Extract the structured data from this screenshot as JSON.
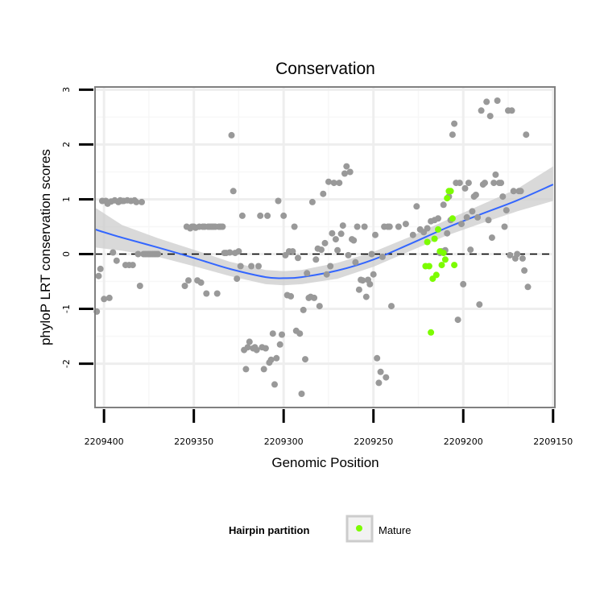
{
  "chart_data": {
    "type": "scatter",
    "title": "Conservation",
    "xlabel": "Genomic Position",
    "ylabel": "phyloP LRT conservation scores",
    "x_reversed": true,
    "xlim": [
      2209149,
      2209405
    ],
    "ylim": [
      -2.8,
      3.05
    ],
    "x_ticks": [
      2209400,
      2209350,
      2209300,
      2209250,
      2209200,
      2209150
    ],
    "x_tick_labels": [
      "2209400",
      "2209350",
      "2209300",
      "2209250",
      "2209200",
      "2209150"
    ],
    "y_ticks": [
      -2,
      -1,
      0,
      1,
      2,
      3
    ],
    "y_tick_labels": [
      "-2",
      "-1",
      "0",
      "1",
      "2",
      "3"
    ],
    "grid": true,
    "reference_line": {
      "y": 0,
      "style": "dashed"
    },
    "legend": {
      "title": "Hairpin partition",
      "placement": "bottom",
      "entries": [
        {
          "label": "Mature",
          "color": "#7cfc00"
        }
      ]
    },
    "series": [
      {
        "color": "#999999",
        "points": [
          [
            2209404,
            -1.05
          ],
          [
            2209403,
            -0.4
          ],
          [
            2209402,
            -0.27
          ],
          [
            2209401,
            0.97
          ],
          [
            2209400,
            -0.82
          ],
          [
            2209399,
            0.97
          ],
          [
            2209398,
            0.92
          ],
          [
            2209397,
            -0.8
          ],
          [
            2209396,
            0.96
          ],
          [
            2209395,
            0.03
          ],
          [
            2209394,
            0.98
          ],
          [
            2209393,
            -0.12
          ],
          [
            2209392,
            0.95
          ],
          [
            2209391,
            0.98
          ],
          [
            2209390,
            0.97
          ],
          [
            2209389,
            0.97
          ],
          [
            2209388,
            -0.2
          ],
          [
            2209387,
            0.98
          ],
          [
            2209386,
            -0.2
          ],
          [
            2209385,
            0.97
          ],
          [
            2209384,
            -0.2
          ],
          [
            2209383,
            0.98
          ],
          [
            2209382,
            0.95
          ],
          [
            2209381,
            0.0
          ],
          [
            2209380,
            -0.58
          ],
          [
            2209379,
            0.95
          ],
          [
            2209378,
            0.0
          ],
          [
            2209377,
            0.0
          ],
          [
            2209376,
            0.0
          ],
          [
            2209375,
            0.0
          ],
          [
            2209374,
            0.0
          ],
          [
            2209373,
            0.0
          ],
          [
            2209372,
            0.0
          ],
          [
            2209371,
            0.0
          ],
          [
            2209370,
            0.0
          ],
          [
            2209355,
            -0.58
          ],
          [
            2209354,
            0.5
          ],
          [
            2209353,
            -0.48
          ],
          [
            2209352,
            0.47
          ],
          [
            2209351,
            0.5
          ],
          [
            2209350,
            0.5
          ],
          [
            2209349,
            0.48
          ],
          [
            2209348,
            -0.48
          ],
          [
            2209347,
            0.5
          ],
          [
            2209346,
            -0.52
          ],
          [
            2209345,
            0.5
          ],
          [
            2209344,
            0.5
          ],
          [
            2209343,
            -0.72
          ],
          [
            2209342,
            0.5
          ],
          [
            2209341,
            0.5
          ],
          [
            2209340,
            0.5
          ],
          [
            2209339,
            0.5
          ],
          [
            2209338,
            0.5
          ],
          [
            2209337,
            -0.72
          ],
          [
            2209336,
            0.5
          ],
          [
            2209335,
            0.5
          ],
          [
            2209334,
            0.5
          ],
          [
            2209333,
            0.02
          ],
          [
            2209332,
            0.02
          ],
          [
            2209330,
            0.03
          ],
          [
            2209329,
            2.17
          ],
          [
            2209328,
            1.15
          ],
          [
            2209327,
            0.02
          ],
          [
            2209326,
            -0.45
          ],
          [
            2209325,
            0.05
          ],
          [
            2209324,
            -0.22
          ],
          [
            2209323,
            0.7
          ],
          [
            2209322,
            -1.75
          ],
          [
            2209321,
            -2.1
          ],
          [
            2209320,
            -1.7
          ],
          [
            2209319,
            -1.6
          ],
          [
            2209318,
            -0.22
          ],
          [
            2209317,
            -1.72
          ],
          [
            2209316,
            -1.7
          ],
          [
            2209315,
            -1.75
          ],
          [
            2209314,
            -0.22
          ],
          [
            2209313,
            0.7
          ],
          [
            2209312,
            -1.7
          ],
          [
            2209311,
            -2.1
          ],
          [
            2209310,
            -1.72
          ],
          [
            2209309,
            0.7
          ],
          [
            2209308,
            -1.98
          ],
          [
            2209307,
            -1.93
          ],
          [
            2209306,
            -1.45
          ],
          [
            2209305,
            -2.38
          ],
          [
            2209304,
            -1.9
          ],
          [
            2209303,
            0.97
          ],
          [
            2209302,
            -1.65
          ],
          [
            2209301,
            -1.47
          ],
          [
            2209300,
            0.7
          ],
          [
            2209299,
            -0.02
          ],
          [
            2209298,
            -0.75
          ],
          [
            2209297,
            0.05
          ],
          [
            2209296,
            -0.77
          ],
          [
            2209295,
            0.05
          ],
          [
            2209294,
            0.5
          ],
          [
            2209293,
            -1.4
          ],
          [
            2209292,
            -0.07
          ],
          [
            2209291,
            -1.45
          ],
          [
            2209290,
            -2.55
          ],
          [
            2209289,
            -1.02
          ],
          [
            2209288,
            -1.92
          ],
          [
            2209287,
            -0.35
          ],
          [
            2209286,
            -0.8
          ],
          [
            2209285,
            -0.78
          ],
          [
            2209284,
            0.95
          ],
          [
            2209283,
            -0.8
          ],
          [
            2209282,
            -0.1
          ],
          [
            2209281,
            0.1
          ],
          [
            2209280,
            -0.95
          ],
          [
            2209279,
            0.08
          ],
          [
            2209278,
            1.1
          ],
          [
            2209277,
            0.2
          ],
          [
            2209276,
            -0.37
          ],
          [
            2209275,
            1.32
          ],
          [
            2209274,
            -0.22
          ],
          [
            2209273,
            0.38
          ],
          [
            2209272,
            1.3
          ],
          [
            2209271,
            0.27
          ],
          [
            2209270,
            0.07
          ],
          [
            2209269,
            1.3
          ],
          [
            2209268,
            0.37
          ],
          [
            2209267,
            0.52
          ],
          [
            2209266,
            1.47
          ],
          [
            2209265,
            1.6
          ],
          [
            2209264,
            -0.02
          ],
          [
            2209263,
            1.5
          ],
          [
            2209262,
            0.27
          ],
          [
            2209261,
            0.25
          ],
          [
            2209260,
            -0.15
          ],
          [
            2209259,
            0.5
          ],
          [
            2209258,
            -0.65
          ],
          [
            2209257,
            -0.47
          ],
          [
            2209256,
            -0.48
          ],
          [
            2209255,
            0.5
          ],
          [
            2209254,
            -0.78
          ],
          [
            2209253,
            -0.47
          ],
          [
            2209252,
            -0.55
          ],
          [
            2209251,
            0.0
          ],
          [
            2209250,
            -0.37
          ],
          [
            2209249,
            0.35
          ],
          [
            2209248,
            -1.9
          ],
          [
            2209247,
            -2.35
          ],
          [
            2209246,
            -2.15
          ],
          [
            2209245,
            -0.05
          ],
          [
            2209244,
            0.5
          ],
          [
            2209243,
            -2.25
          ],
          [
            2209242,
            0.5
          ],
          [
            2209241,
            0.5
          ],
          [
            2209240,
            -0.95
          ],
          [
            2209236,
            0.5
          ],
          [
            2209232,
            0.55
          ],
          [
            2209228,
            0.35
          ],
          [
            2209226,
            0.87
          ],
          [
            2209224,
            0.45
          ],
          [
            2209222,
            0.4
          ],
          [
            2209220,
            0.47
          ],
          [
            2209218,
            0.6
          ],
          [
            2209216,
            0.62
          ],
          [
            2209214,
            0.65
          ],
          [
            2209213,
            0.02
          ],
          [
            2209212,
            0.05
          ],
          [
            2209211,
            0.9
          ],
          [
            2209210,
            0.07
          ],
          [
            2209209,
            0.38
          ],
          [
            2209208,
            1.05
          ],
          [
            2209207,
            0.62
          ],
          [
            2209206,
            2.18
          ],
          [
            2209205,
            2.38
          ],
          [
            2209204,
            1.3
          ],
          [
            2209203,
            -1.2
          ],
          [
            2209202,
            1.3
          ],
          [
            2209201,
            0.55
          ],
          [
            2209200,
            -0.55
          ],
          [
            2209199,
            1.2
          ],
          [
            2209198,
            0.67
          ],
          [
            2209197,
            1.3
          ],
          [
            2209196,
            0.08
          ],
          [
            2209195,
            0.78
          ],
          [
            2209194,
            1.05
          ],
          [
            2209193,
            1.08
          ],
          [
            2209192,
            0.67
          ],
          [
            2209191,
            -0.92
          ],
          [
            2209190,
            2.62
          ],
          [
            2209189,
            1.27
          ],
          [
            2209188,
            1.3
          ],
          [
            2209187,
            2.78
          ],
          [
            2209186,
            0.62
          ],
          [
            2209185,
            2.52
          ],
          [
            2209184,
            0.3
          ],
          [
            2209183,
            1.3
          ],
          [
            2209182,
            1.45
          ],
          [
            2209181,
            2.8
          ],
          [
            2209180,
            1.3
          ],
          [
            2209179,
            1.3
          ],
          [
            2209178,
            1.05
          ],
          [
            2209177,
            0.5
          ],
          [
            2209176,
            0.8
          ],
          [
            2209175,
            2.62
          ],
          [
            2209174,
            -0.02
          ],
          [
            2209173,
            2.62
          ],
          [
            2209172,
            1.15
          ],
          [
            2209171,
            -0.08
          ],
          [
            2209170,
            0.0
          ],
          [
            2209169,
            1.15
          ],
          [
            2209168,
            1.15
          ],
          [
            2209167,
            -0.08
          ],
          [
            2209166,
            -0.3
          ],
          [
            2209165,
            2.18
          ],
          [
            2209164,
            -0.6
          ]
        ]
      },
      {
        "name": "Mature",
        "color": "#7cfc00",
        "points": [
          [
            2209221,
            -0.22
          ],
          [
            2209220,
            0.22
          ],
          [
            2209219,
            -0.22
          ],
          [
            2209218,
            -1.43
          ],
          [
            2209217,
            -0.45
          ],
          [
            2209216,
            0.28
          ],
          [
            2209215,
            -0.38
          ],
          [
            2209214,
            0.45
          ],
          [
            2209213,
            0.05
          ],
          [
            2209212,
            -0.2
          ],
          [
            2209211,
            0.02
          ],
          [
            2209210,
            -0.1
          ],
          [
            2209209,
            1.02
          ],
          [
            2209208,
            1.15
          ],
          [
            2209207,
            1.15
          ],
          [
            2209206,
            0.65
          ],
          [
            2209205,
            -0.2
          ]
        ]
      }
    ],
    "smooth_fit": {
      "color": "#3366ff",
      "x": [
        2209405,
        2209390,
        2209370,
        2209350,
        2209330,
        2209310,
        2209300,
        2209290,
        2209270,
        2209250,
        2209230,
        2209210,
        2209190,
        2209170,
        2209150
      ],
      "y": [
        0.45,
        0.3,
        0.12,
        -0.07,
        -0.27,
        -0.42,
        -0.44,
        -0.42,
        -0.3,
        -0.1,
        0.18,
        0.47,
        0.73,
        0.98,
        1.27
      ],
      "ci_lower": [
        0.12,
        0.06,
        -0.05,
        -0.22,
        -0.4,
        -0.55,
        -0.57,
        -0.55,
        -0.45,
        -0.23,
        0.05,
        0.33,
        0.56,
        0.78,
        0.97
      ],
      "ci_upper": [
        0.85,
        0.53,
        0.29,
        0.08,
        -0.14,
        -0.29,
        -0.31,
        -0.29,
        -0.16,
        0.04,
        0.31,
        0.61,
        0.9,
        1.19,
        1.6
      ]
    }
  }
}
